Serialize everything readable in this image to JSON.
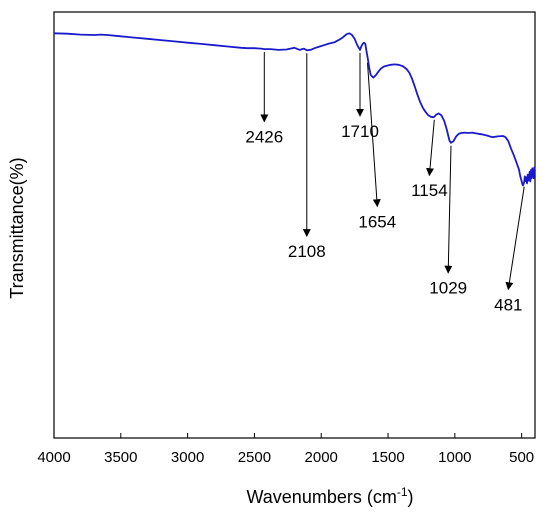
{
  "chart_data": {
    "type": "line",
    "title": "",
    "xlabel": "Wavenumbers (cm",
    "xlabel_sup": "-1",
    "xlabel_close": ")",
    "ylabel": "Transmittance(%)",
    "xlim": [
      4000,
      400
    ],
    "x_reversed": true,
    "ylim": [
      0,
      100
    ],
    "y_ticks_shown": false,
    "grid": false,
    "x_ticks": [
      4000,
      3500,
      3000,
      2500,
      2000,
      1500,
      1000,
      500
    ],
    "x_tick_labels": [
      "4000",
      "3500",
      "3000",
      "2500",
      "2000",
      "1500",
      "1000",
      "500"
    ],
    "series": [
      {
        "color": "#1a1acc",
        "x": [
          4000,
          3900,
          3800,
          3700,
          3650,
          3600,
          3500,
          3400,
          3300,
          3200,
          3100,
          3000,
          2900,
          2800,
          2700,
          2600,
          2550,
          2500,
          2450,
          2426,
          2380,
          2320,
          2260,
          2200,
          2160,
          2130,
          2108,
          2080,
          2050,
          2020,
          1980,
          1940,
          1900,
          1870,
          1840,
          1810,
          1790,
          1770,
          1750,
          1730,
          1710,
          1700,
          1690,
          1680,
          1670,
          1660,
          1650,
          1640,
          1630,
          1610,
          1590,
          1570,
          1550,
          1530,
          1510,
          1480,
          1450,
          1420,
          1390,
          1360,
          1340,
          1320,
          1300,
          1280,
          1260,
          1240,
          1220,
          1200,
          1180,
          1160,
          1154,
          1140,
          1120,
          1100,
          1080,
          1060,
          1050,
          1040,
          1029,
          1010,
          990,
          970,
          950,
          930,
          900,
          870,
          840,
          800,
          760,
          720,
          680,
          640,
          620,
          600,
          580,
          560,
          540,
          520,
          510,
          500,
          495,
          490,
          485,
          481,
          476,
          470,
          465,
          460,
          455,
          450,
          445,
          440,
          435,
          430,
          425,
          420,
          415,
          410,
          405,
          400
        ],
        "y": [
          95.0,
          94.9,
          94.7,
          94.6,
          94.7,
          94.6,
          94.3,
          94.0,
          93.7,
          93.4,
          93.1,
          92.8,
          92.5,
          92.2,
          91.9,
          91.6,
          91.5,
          91.5,
          91.4,
          91.3,
          91.3,
          91.1,
          91.2,
          91.6,
          91.1,
          91.4,
          91.0,
          91.1,
          91.5,
          91.8,
          92.2,
          92.6,
          92.9,
          93.4,
          94.0,
          94.8,
          95.0,
          94.6,
          93.7,
          92.2,
          91.1,
          91.9,
          92.5,
          92.8,
          92.5,
          90.5,
          88.8,
          86.8,
          85.2,
          84.6,
          85.2,
          86.1,
          86.8,
          87.2,
          87.4,
          87.6,
          87.7,
          87.6,
          87.3,
          86.6,
          85.7,
          84.3,
          82.5,
          80.6,
          78.9,
          77.5,
          76.6,
          75.8,
          75.4,
          75.3,
          75.4,
          75.9,
          76.2,
          75.7,
          74.5,
          72.4,
          71.0,
          69.8,
          69.3,
          69.7,
          70.8,
          71.4,
          71.6,
          71.7,
          71.6,
          71.7,
          71.5,
          71.3,
          71.0,
          70.6,
          70.8,
          70.9,
          70.6,
          69.7,
          68.0,
          66.5,
          64.8,
          63.0,
          61.4,
          60.3,
          59.6,
          59.3,
          59.7,
          60.1,
          61.4,
          60.3,
          61.2,
          59.8,
          61.8,
          60.4,
          61.5,
          62.5,
          60.2,
          62.9,
          61.0,
          63.3,
          62.2,
          61.0,
          63.5,
          62.6
        ]
      }
    ],
    "annotations": [
      {
        "label": "2426",
        "x": 2426,
        "y": 91.3,
        "text_x": 2426,
        "text_y": 74.3
      },
      {
        "label": "2108",
        "x": 2108,
        "y": 91.0,
        "text_x": 2108,
        "text_y": 47.4
      },
      {
        "label": "1710",
        "x": 1710,
        "y": 91.1,
        "text_x": 1710,
        "text_y": 75.6
      },
      {
        "label": "1654",
        "x": 1654,
        "y": 88.8,
        "text_x": 1580,
        "text_y": 54.4
      },
      {
        "label": "1154",
        "x": 1154,
        "y": 75.4,
        "text_x": 1190,
        "text_y": 61.7
      },
      {
        "label": "1029",
        "x": 1029,
        "y": 69.3,
        "text_x": 1050,
        "text_y": 38.8
      },
      {
        "label": "481",
        "x": 481,
        "y": 59.7,
        "text_x": 600,
        "text_y": 34.9
      }
    ]
  }
}
